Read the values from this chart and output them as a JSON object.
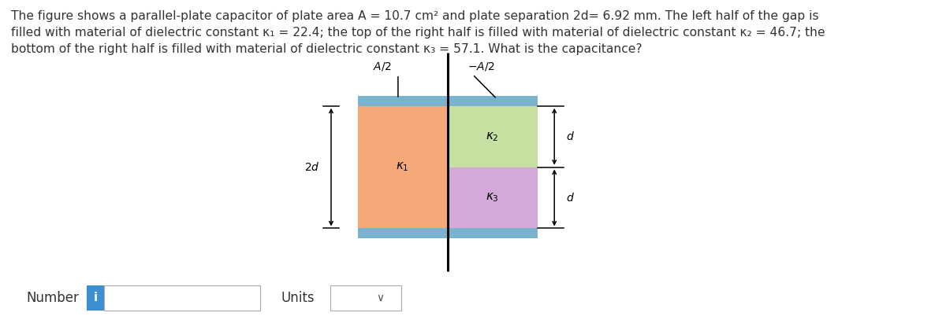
{
  "title_text": "The figure shows a parallel-plate capacitor of plate area A = 10.7 cm² and plate separation 2d= 6.92 mm. The left half of the gap is\nfilled with material of dielectric constant κ₁ = 22.4; the top of the right half is filled with material of dielectric constant κ₂ = 46.7; the\nbottom of the right half is filled with material of dielectric constant κ₃ = 57.1. What is the capacitance?",
  "bg_color": "#ffffff",
  "plate_color": "#7ab3d0",
  "k1_color": "#f5a878",
  "k2_color": "#c5e0a0",
  "k3_color": "#d4a8d8",
  "text_color": "#333333",
  "number_label": "Number",
  "units_label": "Units",
  "info_color": "#3d8fd1"
}
